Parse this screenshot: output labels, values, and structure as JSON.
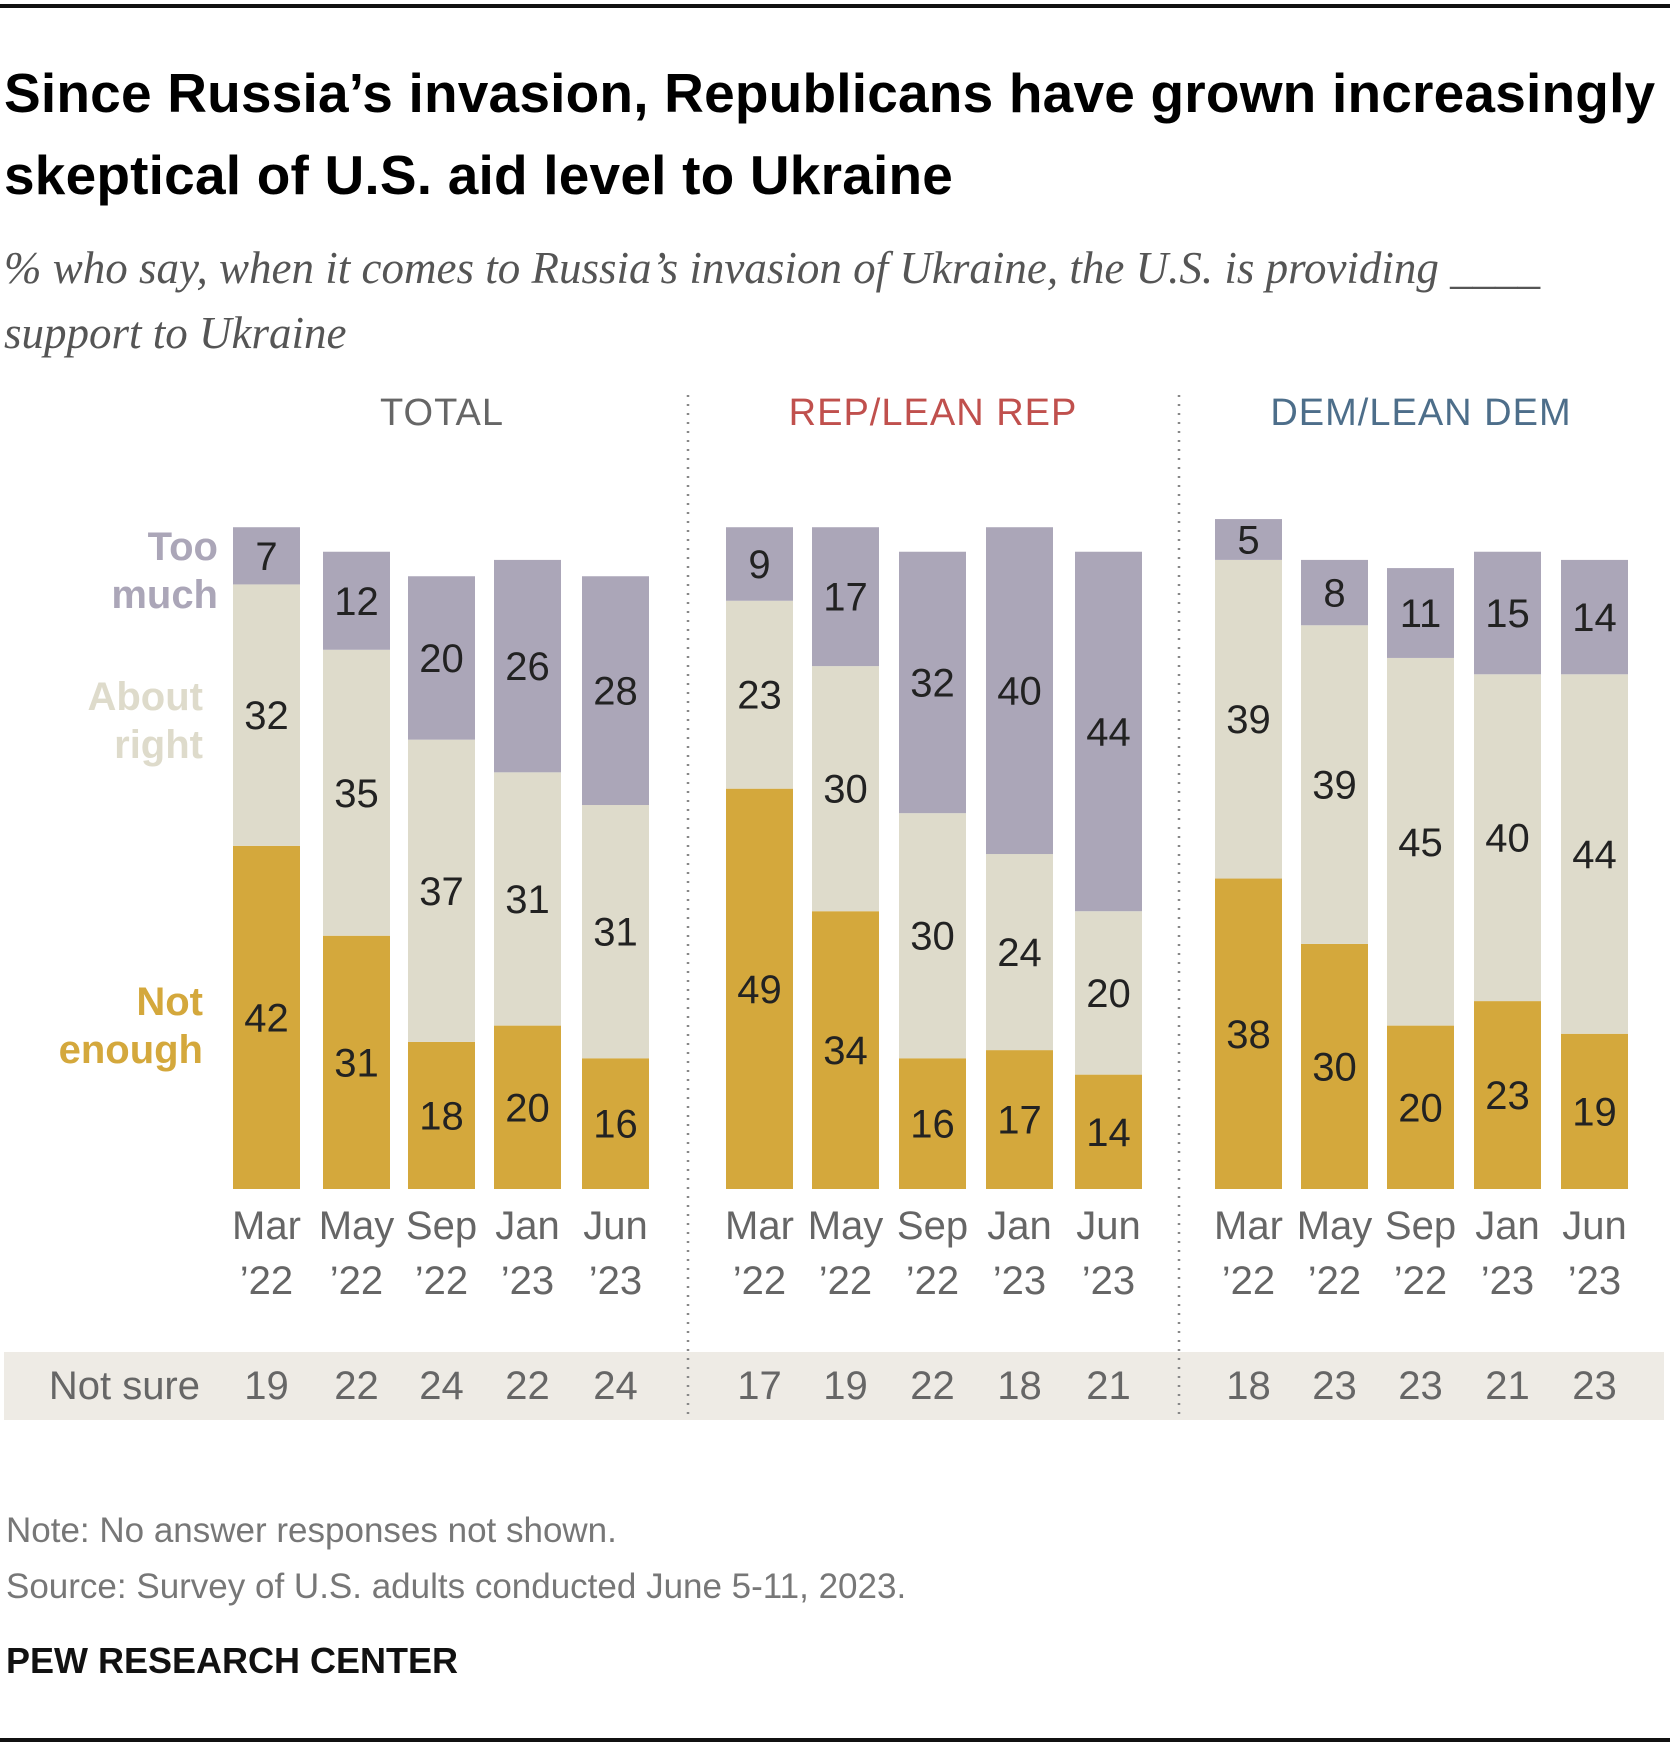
{
  "title": "Since Russia’s invasion, Republicans have grown increasingly skeptical of U.S. aid level to Ukraine",
  "subtitle": "% who say, when it comes to Russia’s invasion of Ukraine, the U.S. is providing ____ support to Ukraine",
  "note": "Note: No answer responses not shown.",
  "source": "Source: Survey of U.S. adults conducted June 5-11, 2023.",
  "brand": "PEW RESEARCH CENTER",
  "colors": {
    "not_enough": "#d4a83c",
    "about_right": "#dedbcb",
    "too_much": "#aba6b8",
    "rep": "#c0504d",
    "dem": "#4d6e8a",
    "total": "#666666",
    "not_sure_band": "#eeebe5"
  },
  "chart_data": {
    "type": "bar",
    "stacked": true,
    "categories": [
      [
        "Mar",
        "’22"
      ],
      [
        "May",
        "’22"
      ],
      [
        "Sep",
        "’22"
      ],
      [
        "Jan",
        "’23"
      ],
      [
        "Jun",
        "’23"
      ]
    ],
    "series_labels": {
      "not_enough": [
        "Not",
        "enough"
      ],
      "about_right": [
        "About",
        "right"
      ],
      "too_much": [
        "Too",
        "much"
      ]
    },
    "not_sure_label": "Not sure",
    "groups": [
      {
        "name": "TOTAL",
        "not_enough": [
          42,
          31,
          18,
          20,
          16
        ],
        "about_right": [
          32,
          35,
          37,
          31,
          31
        ],
        "too_much": [
          7,
          12,
          20,
          26,
          28
        ],
        "not_sure": [
          19,
          22,
          24,
          22,
          24
        ]
      },
      {
        "name": "REP/LEAN REP",
        "not_enough": [
          49,
          34,
          16,
          17,
          14
        ],
        "about_right": [
          23,
          30,
          30,
          24,
          20
        ],
        "too_much": [
          9,
          17,
          32,
          40,
          44
        ],
        "not_sure": [
          17,
          19,
          22,
          18,
          21
        ]
      },
      {
        "name": "DEM/LEAN DEM",
        "not_enough": [
          38,
          30,
          20,
          23,
          19
        ],
        "about_right": [
          39,
          39,
          45,
          40,
          44
        ],
        "too_much": [
          5,
          8,
          11,
          15,
          14
        ],
        "not_sure": [
          18,
          23,
          23,
          21,
          23
        ]
      }
    ]
  }
}
